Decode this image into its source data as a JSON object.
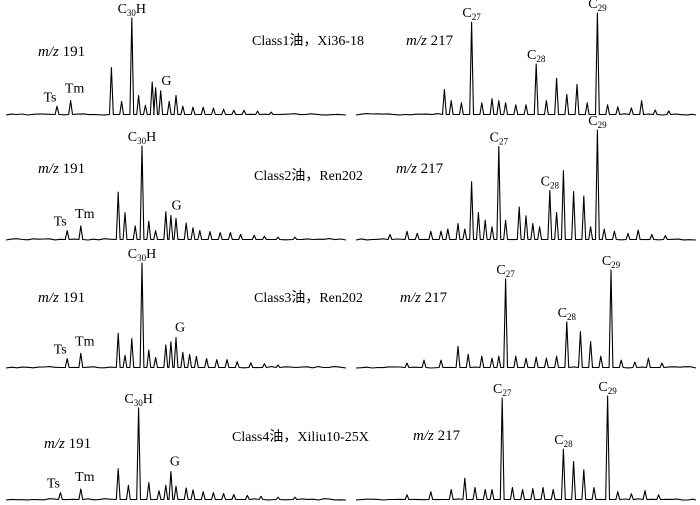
{
  "chart_data": [
    {
      "type": "line",
      "label": "m/z 191",
      "sample": "Class1油，Xi36-18",
      "x_range": [
        0,
        100
      ],
      "y_range": [
        0,
        100
      ],
      "peaks": [
        {
          "x": 15,
          "h": 9
        },
        {
          "x": 19,
          "h": 15
        },
        {
          "x": 31,
          "h": 49
        },
        {
          "x": 34,
          "h": 14
        },
        {
          "x": 37,
          "h": 100
        },
        {
          "x": 39,
          "h": 20
        },
        {
          "x": 41,
          "h": 10
        },
        {
          "x": 43,
          "h": 34
        },
        {
          "x": 44,
          "h": 28
        },
        {
          "x": 45.5,
          "h": 25
        },
        {
          "x": 48,
          "h": 14
        },
        {
          "x": 50,
          "h": 20
        },
        {
          "x": 52,
          "h": 9
        },
        {
          "x": 55,
          "h": 8
        },
        {
          "x": 58,
          "h": 8
        },
        {
          "x": 61,
          "h": 7
        },
        {
          "x": 64,
          "h": 6
        },
        {
          "x": 67,
          "h": 5
        },
        {
          "x": 70,
          "h": 5
        },
        {
          "x": 74,
          "h": 4
        },
        {
          "x": 78,
          "h": 3
        }
      ],
      "annotations": [
        {
          "text": "Ts",
          "x": 15
        },
        {
          "text": "Tm",
          "x": 19
        },
        {
          "text": "G",
          "x": 46
        },
        {
          "text": "C30H",
          "base": "C",
          "sub": "30",
          "rest": "H",
          "x": 37
        }
      ]
    },
    {
      "type": "line",
      "label": "m/z 217",
      "x_range": [
        0,
        100
      ],
      "y_range": [
        0,
        100
      ],
      "peaks": [
        {
          "x": 26,
          "h": 25
        },
        {
          "x": 28,
          "h": 14
        },
        {
          "x": 31,
          "h": 12
        },
        {
          "x": 34,
          "h": 91
        },
        {
          "x": 37,
          "h": 12
        },
        {
          "x": 40,
          "h": 16
        },
        {
          "x": 42,
          "h": 14
        },
        {
          "x": 44,
          "h": 12
        },
        {
          "x": 47,
          "h": 10
        },
        {
          "x": 50,
          "h": 10
        },
        {
          "x": 53,
          "h": 50
        },
        {
          "x": 56,
          "h": 14
        },
        {
          "x": 59,
          "h": 36
        },
        {
          "x": 62,
          "h": 20
        },
        {
          "x": 65,
          "h": 30
        },
        {
          "x": 68,
          "h": 12
        },
        {
          "x": 71,
          "h": 100
        },
        {
          "x": 74,
          "h": 10
        },
        {
          "x": 77,
          "h": 8
        },
        {
          "x": 81,
          "h": 7
        },
        {
          "x": 84,
          "h": 14
        },
        {
          "x": 88,
          "h": 5
        },
        {
          "x": 92,
          "h": 4
        }
      ],
      "annotations": [
        {
          "text": "C27",
          "base": "C",
          "sub": "27",
          "rest": "",
          "x": 34
        },
        {
          "text": "C28",
          "base": "C",
          "sub": "28",
          "rest": "",
          "x": 53
        },
        {
          "text": "C29",
          "base": "C",
          "sub": "29",
          "rest": "",
          "x": 71
        }
      ]
    },
    {
      "type": "line",
      "label": "m/z 191",
      "sample": "Class2油，Ren202",
      "x_range": [
        0,
        100
      ],
      "y_range": [
        0,
        100
      ],
      "peaks": [
        {
          "x": 18,
          "h": 10
        },
        {
          "x": 22,
          "h": 15
        },
        {
          "x": 33,
          "h": 51
        },
        {
          "x": 35,
          "h": 29
        },
        {
          "x": 38,
          "h": 15
        },
        {
          "x": 40,
          "h": 100
        },
        {
          "x": 42,
          "h": 20
        },
        {
          "x": 44,
          "h": 10
        },
        {
          "x": 47,
          "h": 30
        },
        {
          "x": 48.5,
          "h": 26
        },
        {
          "x": 50,
          "h": 23
        },
        {
          "x": 53,
          "h": 18
        },
        {
          "x": 55,
          "h": 13
        },
        {
          "x": 57,
          "h": 10
        },
        {
          "x": 60,
          "h": 9
        },
        {
          "x": 63,
          "h": 8
        },
        {
          "x": 66,
          "h": 8
        },
        {
          "x": 69,
          "h": 6
        },
        {
          "x": 73,
          "h": 5
        },
        {
          "x": 76,
          "h": 4
        },
        {
          "x": 80,
          "h": 3
        },
        {
          "x": 85,
          "h": 3
        }
      ],
      "annotations": [
        {
          "text": "Ts",
          "x": 18
        },
        {
          "text": "Tm",
          "x": 22
        },
        {
          "text": "G",
          "x": 49
        },
        {
          "text": "C30H",
          "base": "C",
          "sub": "30",
          "rest": "H",
          "x": 40
        }
      ]
    },
    {
      "type": "line",
      "label": "m/z 217",
      "x_range": [
        0,
        100
      ],
      "y_range": [
        0,
        100
      ],
      "peaks": [
        {
          "x": 10,
          "h": 5
        },
        {
          "x": 15,
          "h": 8
        },
        {
          "x": 18,
          "h": 6
        },
        {
          "x": 22,
          "h": 8
        },
        {
          "x": 25,
          "h": 8
        },
        {
          "x": 27,
          "h": 10
        },
        {
          "x": 30,
          "h": 15
        },
        {
          "x": 32,
          "h": 10
        },
        {
          "x": 34,
          "h": 53
        },
        {
          "x": 36,
          "h": 25
        },
        {
          "x": 38,
          "h": 18
        },
        {
          "x": 40,
          "h": 12
        },
        {
          "x": 42,
          "h": 85
        },
        {
          "x": 44,
          "h": 18
        },
        {
          "x": 48,
          "h": 30
        },
        {
          "x": 50,
          "h": 22
        },
        {
          "x": 52,
          "h": 15
        },
        {
          "x": 54,
          "h": 12
        },
        {
          "x": 57,
          "h": 45
        },
        {
          "x": 59,
          "h": 25
        },
        {
          "x": 61,
          "h": 63
        },
        {
          "x": 64,
          "h": 44
        },
        {
          "x": 67,
          "h": 40
        },
        {
          "x": 69,
          "h": 12
        },
        {
          "x": 71,
          "h": 100
        },
        {
          "x": 73,
          "h": 10
        },
        {
          "x": 76,
          "h": 8
        },
        {
          "x": 80,
          "h": 6
        },
        {
          "x": 83,
          "h": 9
        },
        {
          "x": 87,
          "h": 5
        },
        {
          "x": 91,
          "h": 4
        }
      ],
      "annotations": [
        {
          "text": "C27",
          "base": "C",
          "sub": "27",
          "rest": "",
          "x": 42
        },
        {
          "text": "C28",
          "base": "C",
          "sub": "28",
          "rest": "",
          "x": 57
        },
        {
          "text": "C29",
          "base": "C",
          "sub": "29",
          "rest": "",
          "x": 71
        }
      ]
    },
    {
      "type": "line",
      "label": "m/z 191",
      "sample": "Class3油，Ren202",
      "x_range": [
        0,
        100
      ],
      "y_range": [
        0,
        100
      ],
      "peaks": [
        {
          "x": 18,
          "h": 9
        },
        {
          "x": 22,
          "h": 14
        },
        {
          "x": 33,
          "h": 33
        },
        {
          "x": 35,
          "h": 12
        },
        {
          "x": 37,
          "h": 28
        },
        {
          "x": 40,
          "h": 100
        },
        {
          "x": 42,
          "h": 17
        },
        {
          "x": 44,
          "h": 10
        },
        {
          "x": 47,
          "h": 22
        },
        {
          "x": 48.5,
          "h": 25
        },
        {
          "x": 50,
          "h": 29
        },
        {
          "x": 52,
          "h": 15
        },
        {
          "x": 54,
          "h": 13
        },
        {
          "x": 56,
          "h": 11
        },
        {
          "x": 59,
          "h": 9
        },
        {
          "x": 62,
          "h": 8
        },
        {
          "x": 65,
          "h": 8
        },
        {
          "x": 68,
          "h": 6
        },
        {
          "x": 72,
          "h": 5
        },
        {
          "x": 76,
          "h": 4
        },
        {
          "x": 80,
          "h": 3
        }
      ],
      "annotations": [
        {
          "text": "Ts",
          "x": 18
        },
        {
          "text": "Tm",
          "x": 22
        },
        {
          "text": "G",
          "x": 50
        },
        {
          "text": "C30H",
          "base": "C",
          "sub": "30",
          "rest": "H",
          "x": 40
        }
      ]
    },
    {
      "type": "line",
      "label": "m/z 217",
      "x_range": [
        0,
        100
      ],
      "y_range": [
        0,
        100
      ],
      "peaks": [
        {
          "x": 15,
          "h": 5
        },
        {
          "x": 20,
          "h": 8
        },
        {
          "x": 25,
          "h": 8
        },
        {
          "x": 30,
          "h": 22
        },
        {
          "x": 33,
          "h": 14
        },
        {
          "x": 37,
          "h": 12
        },
        {
          "x": 40,
          "h": 10
        },
        {
          "x": 42,
          "h": 12
        },
        {
          "x": 44,
          "h": 91
        },
        {
          "x": 47,
          "h": 12
        },
        {
          "x": 50,
          "h": 10
        },
        {
          "x": 53,
          "h": 11
        },
        {
          "x": 56,
          "h": 10
        },
        {
          "x": 59,
          "h": 12
        },
        {
          "x": 62,
          "h": 47
        },
        {
          "x": 66,
          "h": 37
        },
        {
          "x": 69,
          "h": 27
        },
        {
          "x": 72,
          "h": 12
        },
        {
          "x": 75,
          "h": 100
        },
        {
          "x": 78,
          "h": 8
        },
        {
          "x": 82,
          "h": 6
        },
        {
          "x": 86,
          "h": 10
        },
        {
          "x": 90,
          "h": 5
        }
      ],
      "annotations": [
        {
          "text": "C27",
          "base": "C",
          "sub": "27",
          "rest": "",
          "x": 44
        },
        {
          "text": "C28",
          "base": "C",
          "sub": "28",
          "rest": "",
          "x": 62
        },
        {
          "text": "C29",
          "base": "C",
          "sub": "29",
          "rest": "",
          "x": 75
        }
      ]
    },
    {
      "type": "line",
      "label": "m/z 191",
      "sample": "Class4油，Xiliu10-25X",
      "x_range": [
        0,
        100
      ],
      "y_range": [
        0,
        100
      ],
      "peaks": [
        {
          "x": 16,
          "h": 8
        },
        {
          "x": 22,
          "h": 12
        },
        {
          "x": 33,
          "h": 34
        },
        {
          "x": 36,
          "h": 16
        },
        {
          "x": 39,
          "h": 100
        },
        {
          "x": 42,
          "h": 19
        },
        {
          "x": 45,
          "h": 10
        },
        {
          "x": 47,
          "h": 16
        },
        {
          "x": 48.5,
          "h": 31
        },
        {
          "x": 50,
          "h": 15
        },
        {
          "x": 53,
          "h": 13
        },
        {
          "x": 55,
          "h": 11
        },
        {
          "x": 58,
          "h": 9
        },
        {
          "x": 61,
          "h": 8
        },
        {
          "x": 64,
          "h": 7
        },
        {
          "x": 67,
          "h": 6
        },
        {
          "x": 71,
          "h": 5
        },
        {
          "x": 75,
          "h": 4
        },
        {
          "x": 80,
          "h": 3
        },
        {
          "x": 85,
          "h": 3
        }
      ],
      "annotations": [
        {
          "text": "Ts",
          "x": 16
        },
        {
          "text": "Tm",
          "x": 22
        },
        {
          "text": "G",
          "x": 48.5
        },
        {
          "text": "C30H",
          "base": "C",
          "sub": "30",
          "rest": "H",
          "x": 39
        }
      ]
    },
    {
      "type": "line",
      "label": "m/z 217",
      "x_range": [
        0,
        100
      ],
      "y_range": [
        0,
        100
      ],
      "peaks": [
        {
          "x": 15,
          "h": 5
        },
        {
          "x": 22,
          "h": 8
        },
        {
          "x": 28,
          "h": 10
        },
        {
          "x": 32,
          "h": 21
        },
        {
          "x": 35,
          "h": 12
        },
        {
          "x": 38,
          "h": 10
        },
        {
          "x": 40,
          "h": 10
        },
        {
          "x": 43,
          "h": 98
        },
        {
          "x": 46,
          "h": 12
        },
        {
          "x": 49,
          "h": 10
        },
        {
          "x": 52,
          "h": 11
        },
        {
          "x": 55,
          "h": 12
        },
        {
          "x": 58,
          "h": 10
        },
        {
          "x": 61,
          "h": 49
        },
        {
          "x": 64,
          "h": 37
        },
        {
          "x": 67,
          "h": 29
        },
        {
          "x": 70,
          "h": 12
        },
        {
          "x": 74,
          "h": 100
        },
        {
          "x": 77,
          "h": 8
        },
        {
          "x": 81,
          "h": 6
        },
        {
          "x": 85,
          "h": 9
        },
        {
          "x": 89,
          "h": 5
        }
      ],
      "annotations": [
        {
          "text": "C27",
          "base": "C",
          "sub": "27",
          "rest": "",
          "x": 43
        },
        {
          "text": "C28",
          "base": "C",
          "sub": "28",
          "rest": "",
          "x": 61
        },
        {
          "text": "C29",
          "base": "C",
          "sub": "29",
          "rest": "",
          "x": 74
        }
      ]
    }
  ]
}
